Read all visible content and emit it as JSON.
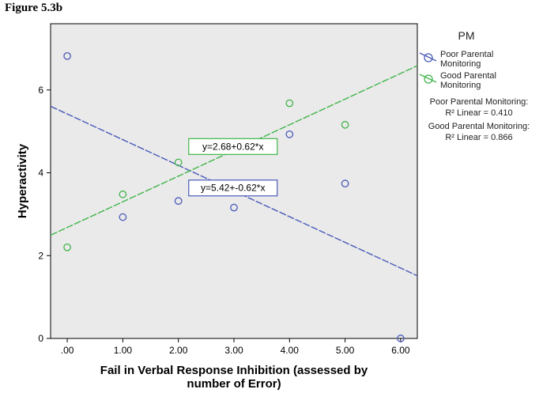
{
  "figure_label": "Figure 5.3b",
  "legend": {
    "title": "PM",
    "poor_label_1": "Poor Parental",
    "poor_label_2": "Monitoring",
    "good_label_1": "Good Parental",
    "good_label_2": "Monitoring",
    "poor_r2_1": "Poor Parental Monitoring:",
    "poor_r2_2": "R² Linear = 0.410",
    "good_r2_1": "Good Parental Monitoring:",
    "good_r2_2": "R² Linear = 0.866"
  },
  "colors": {
    "poor": "#4a5ab8",
    "good": "#3fb54a",
    "plot_bg": "#eaeaea"
  },
  "chart_data": {
    "type": "scatter",
    "xlabel_line1": "Fail in Verbal Response Inhibition (assessed by",
    "xlabel_line2": "number of Error)",
    "ylabel": "Hyperactivity",
    "xlim": [
      -0.3,
      6.3
    ],
    "ylim": [
      0,
      7.6
    ],
    "x_ticks": [
      0,
      1,
      2,
      3,
      4,
      5,
      6
    ],
    "x_tick_labels": [
      ".00",
      "1.00",
      "2.00",
      "3.00",
      "4.00",
      "5.00",
      "6.00"
    ],
    "y_ticks": [
      0,
      2,
      4,
      6
    ],
    "y_tick_labels": [
      "0",
      "2",
      "4",
      "6"
    ],
    "series": [
      {
        "name": "Poor Parental Monitoring",
        "color_key": "poor",
        "points": [
          [
            0,
            6.82
          ],
          [
            1,
            2.93
          ],
          [
            2,
            3.32
          ],
          [
            3,
            3.16
          ],
          [
            4,
            4.93
          ],
          [
            5,
            3.74
          ],
          [
            6,
            0
          ]
        ],
        "fit": {
          "intercept": 5.42,
          "slope": -0.62,
          "equation": "y=5.42+-0.62*x"
        }
      },
      {
        "name": "Good Parental Monitoring",
        "color_key": "good",
        "points": [
          [
            0,
            2.2
          ],
          [
            1,
            3.48
          ],
          [
            2,
            4.25
          ],
          [
            4,
            5.68
          ],
          [
            5,
            5.16
          ]
        ],
        "fit": {
          "intercept": 2.68,
          "slope": 0.62,
          "equation": "y=2.68+0.62*x"
        }
      }
    ]
  }
}
